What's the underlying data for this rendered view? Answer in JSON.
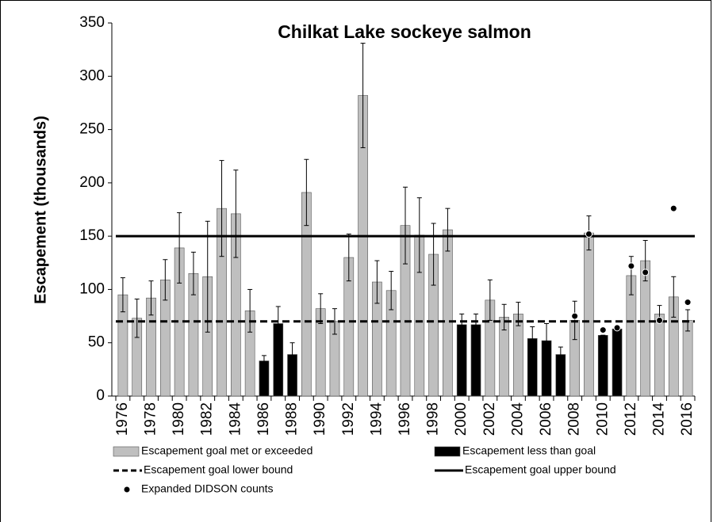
{
  "chart_data": {
    "type": "bar",
    "title": "Chilkat Lake sockeye salmon",
    "y_label": "Escapement (thousands)",
    "categories": [
      1976,
      null,
      1978,
      null,
      1980,
      null,
      1982,
      null,
      1984,
      null,
      1986,
      null,
      1988,
      null,
      1990,
      null,
      1992,
      null,
      1994,
      null,
      1996,
      null,
      1998,
      null,
      2000,
      null,
      2002,
      null,
      2004,
      null,
      2006,
      null,
      2008,
      null,
      2010,
      null,
      2012,
      null,
      2014,
      null,
      2016
    ],
    "ylim": [
      0,
      350
    ],
    "yticks": [
      0,
      50,
      100,
      150,
      200,
      250,
      300,
      350
    ],
    "series": [
      {
        "name": "Escapement goal met or exceeded",
        "color": "#bfbfbf",
        "values": [
          95,
          73,
          92,
          109,
          139,
          115,
          112,
          176,
          171,
          80,
          null,
          null,
          null,
          191,
          82,
          70,
          130,
          282,
          107,
          99,
          160,
          151,
          133,
          156,
          null,
          null,
          90,
          74,
          77,
          null,
          null,
          null,
          71,
          153,
          null,
          null,
          113,
          127,
          77,
          93,
          71
        ],
        "errors": [
          16,
          18,
          16,
          19,
          33,
          20,
          52,
          45,
          41,
          20,
          null,
          null,
          null,
          31,
          14,
          12,
          22,
          49,
          20,
          18,
          36,
          35,
          29,
          20,
          null,
          null,
          19,
          12,
          11,
          null,
          null,
          null,
          18,
          16,
          null,
          null,
          18,
          19,
          8,
          19,
          10
        ]
      },
      {
        "name": "Escapement less than goal",
        "color": "#000000",
        "values": [
          null,
          null,
          null,
          null,
          null,
          null,
          null,
          null,
          null,
          null,
          33,
          68,
          39,
          null,
          null,
          null,
          null,
          null,
          null,
          null,
          null,
          null,
          null,
          null,
          67,
          67,
          null,
          null,
          null,
          54,
          52,
          39,
          null,
          null,
          57,
          63,
          null,
          null,
          null,
          null,
          null
        ],
        "errors": [
          null,
          null,
          null,
          null,
          null,
          null,
          null,
          null,
          null,
          null,
          5,
          16,
          11,
          null,
          null,
          null,
          null,
          null,
          null,
          null,
          null,
          null,
          null,
          null,
          10,
          10,
          null,
          null,
          null,
          11,
          16,
          7,
          null,
          null,
          0,
          0,
          null,
          null,
          null,
          null,
          null
        ]
      }
    ],
    "reference_lines": [
      {
        "name": "Escapement goal lower bound",
        "value": 70,
        "style": "dashed",
        "color": "#000000"
      },
      {
        "name": "Escapement goal upper bound",
        "value": 150,
        "style": "solid",
        "color": "#000000"
      }
    ],
    "points": {
      "name": "Expanded DIDSON counts",
      "color": "#000000",
      "values": [
        null,
        null,
        null,
        null,
        null,
        null,
        null,
        null,
        null,
        null,
        null,
        null,
        null,
        null,
        null,
        null,
        null,
        null,
        null,
        null,
        null,
        null,
        null,
        null,
        null,
        null,
        null,
        null,
        null,
        null,
        null,
        null,
        75,
        152,
        62,
        64,
        122,
        116,
        71,
        176,
        88
      ]
    }
  }
}
